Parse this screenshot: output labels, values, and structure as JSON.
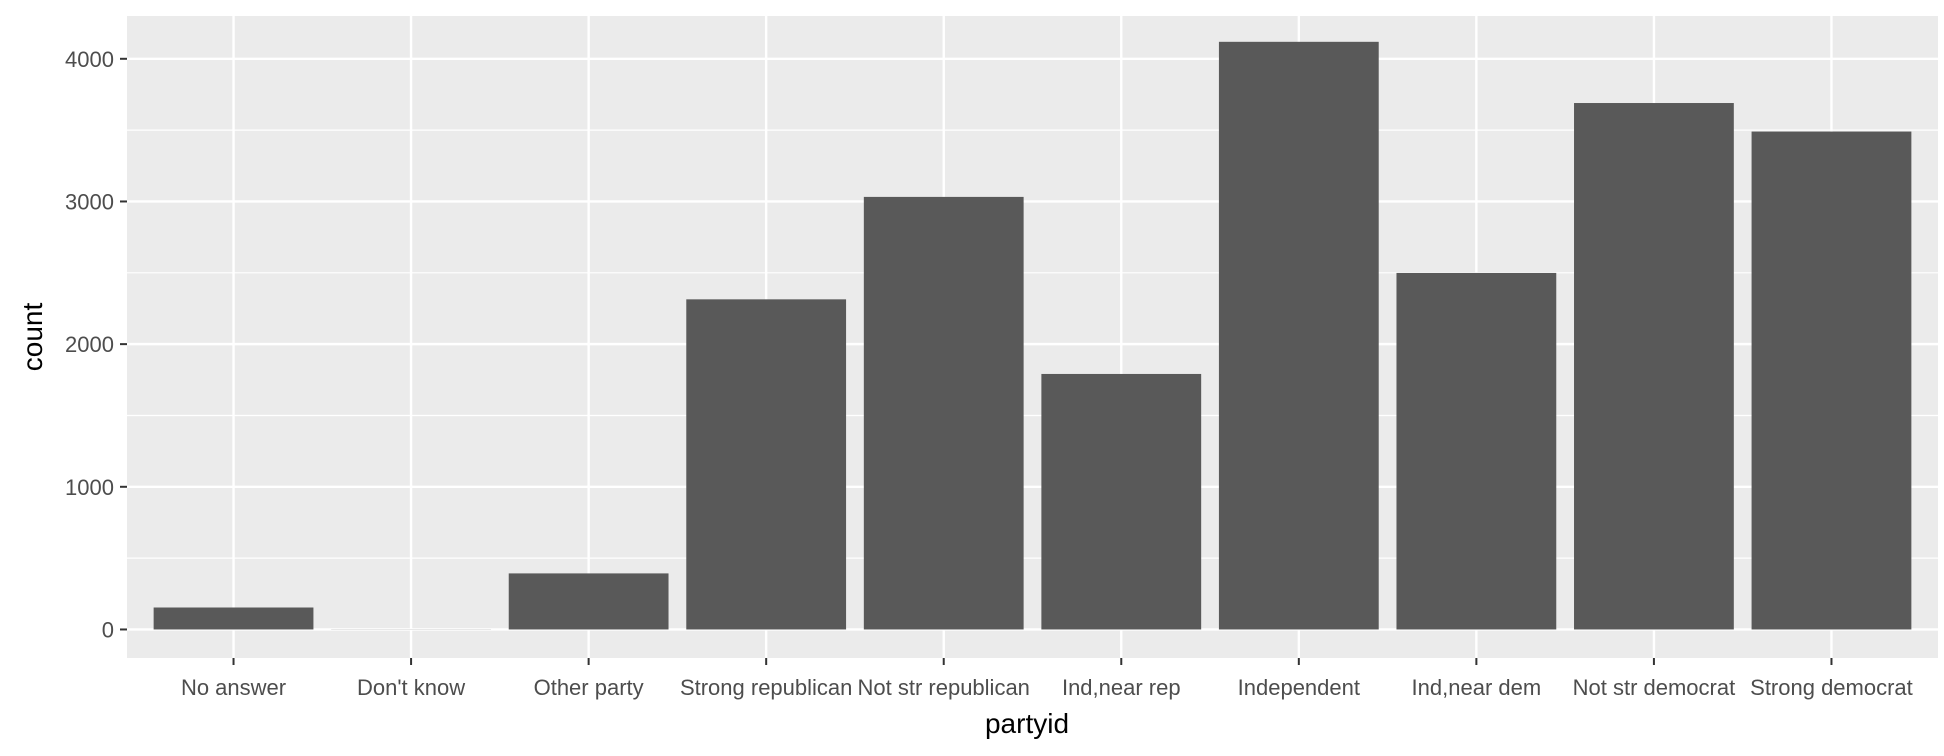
{
  "chart_data": {
    "type": "bar",
    "categories": [
      "No answer",
      "Don't know",
      "Other party",
      "Strong republican",
      "Not str republican",
      "Ind,near rep",
      "Independent",
      "Ind,near dem",
      "Not str democrat",
      "Strong democrat"
    ],
    "values": [
      154,
      1,
      393,
      2314,
      3032,
      1791,
      4119,
      2499,
      3690,
      3490
    ],
    "title": "",
    "xlabel": "partyid",
    "ylabel": "count",
    "ylim": [
      -200,
      4300
    ],
    "yticks": [
      0,
      1000,
      2000,
      3000,
      4000
    ],
    "colors": {
      "bar": "#595959",
      "panel": "#ebebeb",
      "grid": "#ffffff"
    },
    "grid": true,
    "legend": "none"
  }
}
